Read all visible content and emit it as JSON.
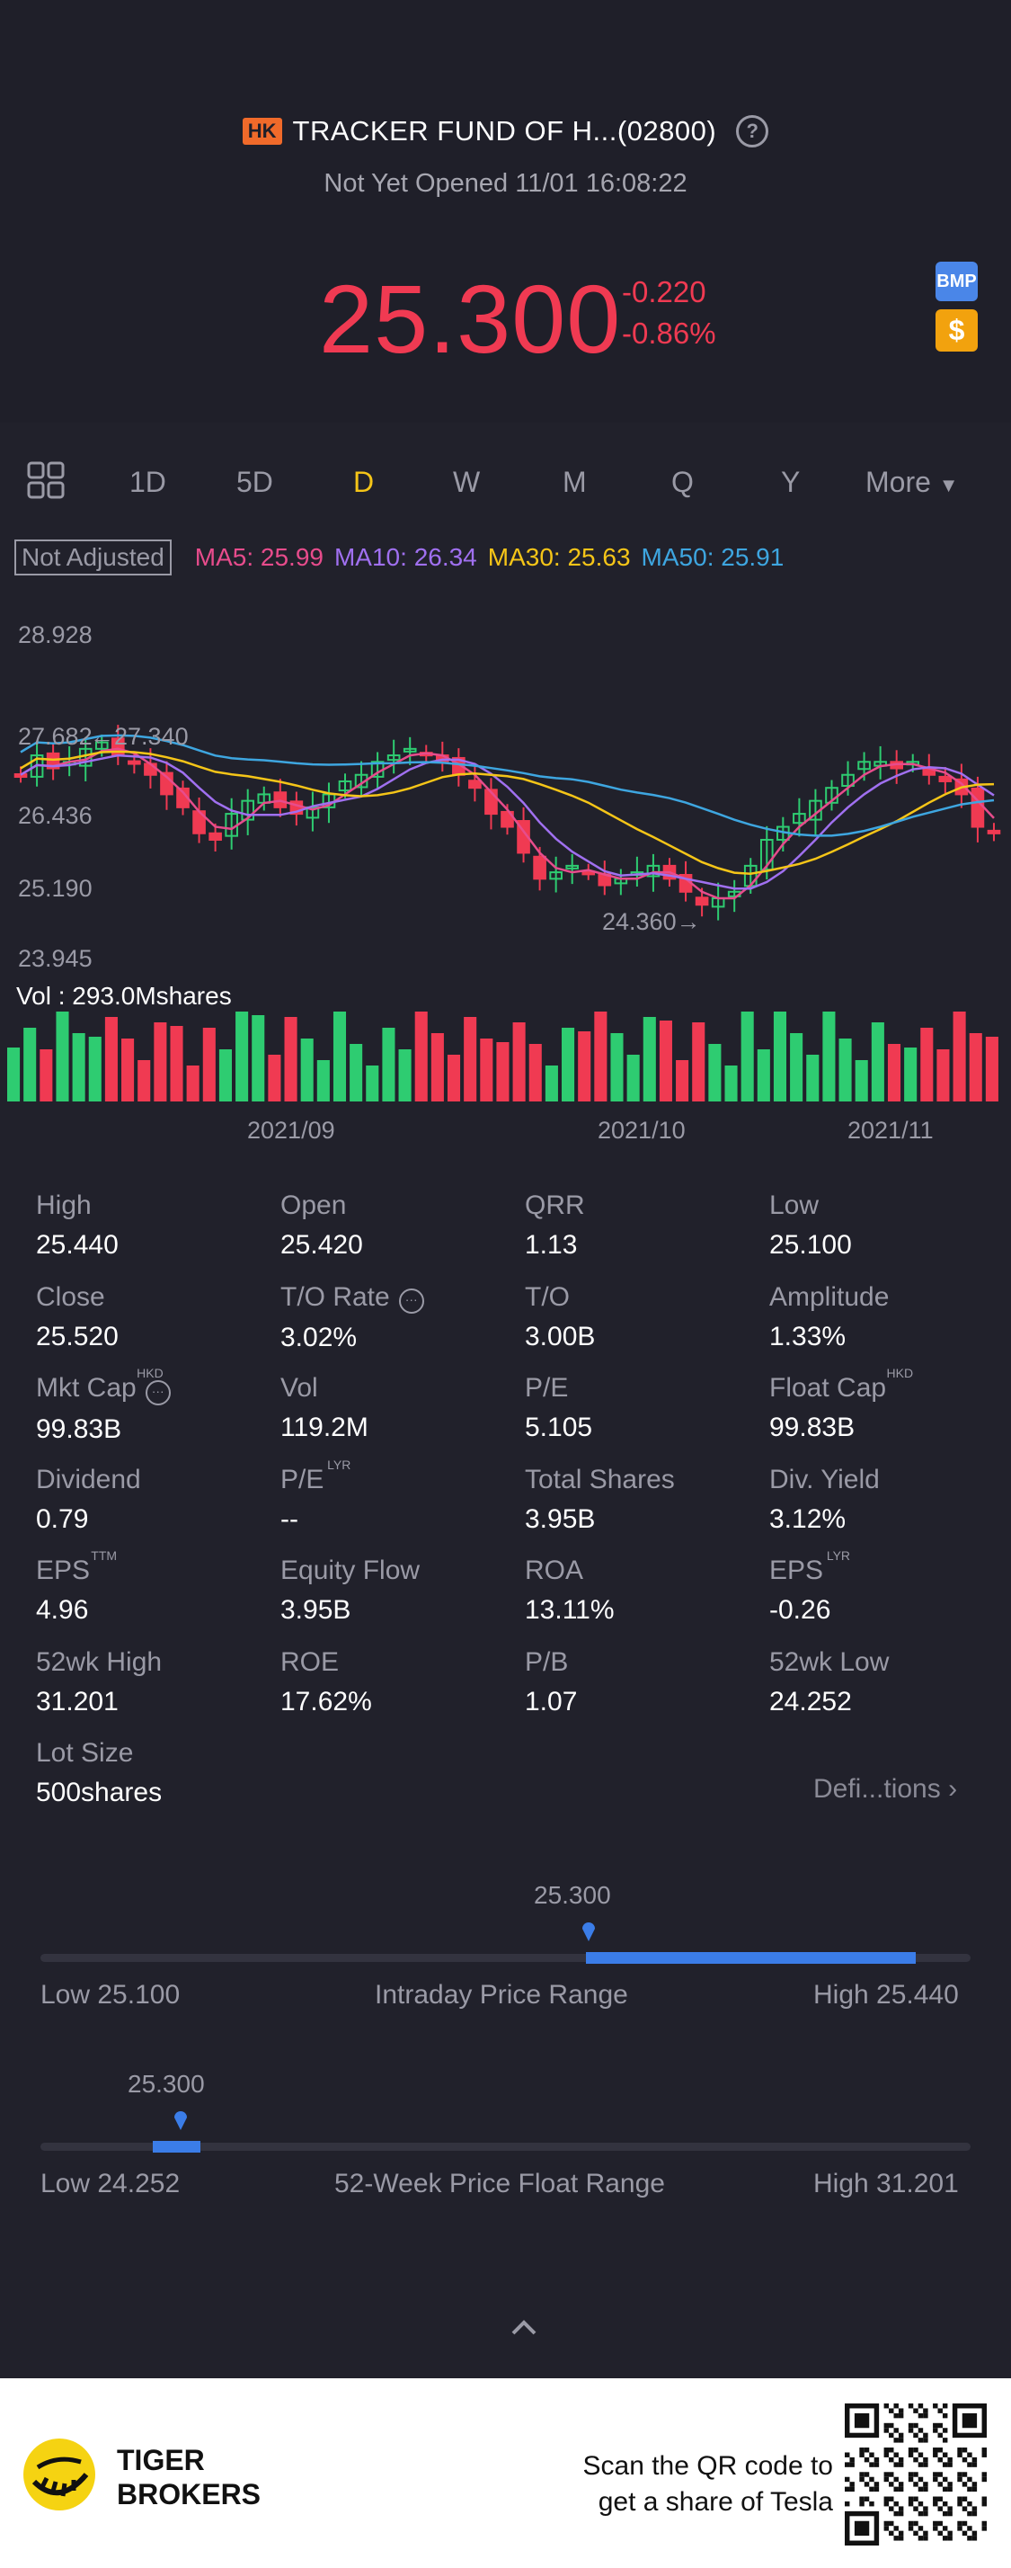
{
  "header": {
    "market_badge": "HK",
    "title": "TRACKER FUND OF H...(02800)",
    "status": "Not Yet Opened 11/01 16:08:22",
    "price": "25.300",
    "change": "-0.220",
    "change_pct": "-0.86%",
    "bmp_label": "BMP",
    "dollar_label": "$",
    "price_color": "#f03a52"
  },
  "tabs": [
    {
      "label": "1D"
    },
    {
      "label": "5D"
    },
    {
      "label": "D",
      "active": true
    },
    {
      "label": "W"
    },
    {
      "label": "M"
    },
    {
      "label": "Q"
    },
    {
      "label": "Y"
    },
    {
      "label": "More"
    }
  ],
  "chart": {
    "adjust_label": "Not Adjusted",
    "ma": [
      {
        "text": "MA5: 25.99",
        "color": "#e74c8c"
      },
      {
        "text": "MA10: 26.34",
        "color": "#a070f0"
      },
      {
        "text": "MA30: 25.63",
        "color": "#f5c518"
      },
      {
        "text": "MA50: 25.91",
        "color": "#3ea6e0"
      }
    ],
    "y_ticks": [
      "28.928",
      "27.682",
      "26.436",
      "25.190",
      "23.945"
    ],
    "high_marker": "←27.340",
    "low_marker": "24.360→",
    "volume_label": "Vol  : 293.0Mshares",
    "x_ticks": [
      "2021/09",
      "2021/10",
      "2021/11"
    ],
    "up_color": "#2ecc71",
    "down_color": "#f03a52"
  },
  "chart_data": {
    "type": "candlestick",
    "ylim": [
      23.945,
      28.928
    ],
    "candles_close": [
      26.8,
      27.1,
      26.9,
      27.0,
      27.2,
      27.3,
      27.1,
      27.0,
      26.8,
      26.5,
      26.3,
      25.9,
      25.8,
      26.2,
      26.4,
      26.5,
      26.3,
      26.2,
      26.3,
      26.5,
      26.7,
      26.8,
      27.0,
      27.1,
      27.2,
      27.1,
      27.0,
      26.8,
      26.6,
      26.2,
      26.0,
      25.6,
      25.2,
      25.3,
      25.4,
      25.3,
      25.1,
      25.2,
      25.3,
      25.4,
      25.2,
      25.0,
      24.8,
      24.9,
      25.0,
      25.4,
      25.8,
      26.0,
      26.2,
      26.4,
      26.6,
      26.8,
      27.0,
      27.0,
      26.9,
      27.0,
      26.8,
      26.7,
      26.5,
      26.0,
      25.9
    ],
    "volume_max_shares": "293.0M",
    "x_labels": [
      "2021/09",
      "2021/10",
      "2021/11"
    ]
  },
  "stats": [
    {
      "label": "High",
      "value": "25.440"
    },
    {
      "label": "Open",
      "value": "25.420"
    },
    {
      "label": "QRR",
      "value": "1.13"
    },
    {
      "label": "Low",
      "value": "25.100"
    },
    {
      "label": "Close",
      "value": "25.520"
    },
    {
      "label": "T/O Rate",
      "value": "3.02%",
      "info": true
    },
    {
      "label": "T/O",
      "value": "3.00B"
    },
    {
      "label": "Amplitude",
      "value": "1.33%"
    },
    {
      "label": "Mkt Cap",
      "value": "99.83B",
      "sup": "HKD",
      "info": true
    },
    {
      "label": "Vol",
      "value": "119.2M"
    },
    {
      "label": "P/E",
      "value": "5.105"
    },
    {
      "label": "Float Cap",
      "value": "99.83B",
      "sup": "HKD"
    },
    {
      "label": "Dividend",
      "value": "0.79"
    },
    {
      "label": "P/E",
      "value": "--",
      "sup": "LYR"
    },
    {
      "label": "Total Shares",
      "value": "3.95B"
    },
    {
      "label": "Div. Yield",
      "value": "3.12%"
    },
    {
      "label": "EPS",
      "value": "4.96",
      "sup": "TTM"
    },
    {
      "label": "Equity Flow",
      "value": "3.95B"
    },
    {
      "label": "ROA",
      "value": "13.11%"
    },
    {
      "label": "EPS",
      "value": "-0.26",
      "sup": "LYR"
    },
    {
      "label": "52wk High",
      "value": "31.201"
    },
    {
      "label": "ROE",
      "value": "17.62%"
    },
    {
      "label": "P/B",
      "value": "1.07"
    },
    {
      "label": "52wk Low",
      "value": "24.252"
    },
    {
      "label": "Lot Size",
      "value": "500shares"
    }
  ],
  "definitions_label": "Defi...tions",
  "intraday_range": {
    "current": "25.300",
    "low_label": "Low 25.100",
    "title": "Intraday Price Range",
    "high_label": "High 25.440",
    "position": 0.59
  },
  "week52_range": {
    "current": "25.300",
    "low_label": "Low 24.252",
    "title": "52-Week Price Float Range",
    "high_label": "High 31.201",
    "position": 0.15
  },
  "footer": {
    "brand_line1": "TIGER",
    "brand_line2": "BROKERS",
    "scan_line1": "Scan the QR code to",
    "scan_line2": "get a share of Tesla"
  }
}
